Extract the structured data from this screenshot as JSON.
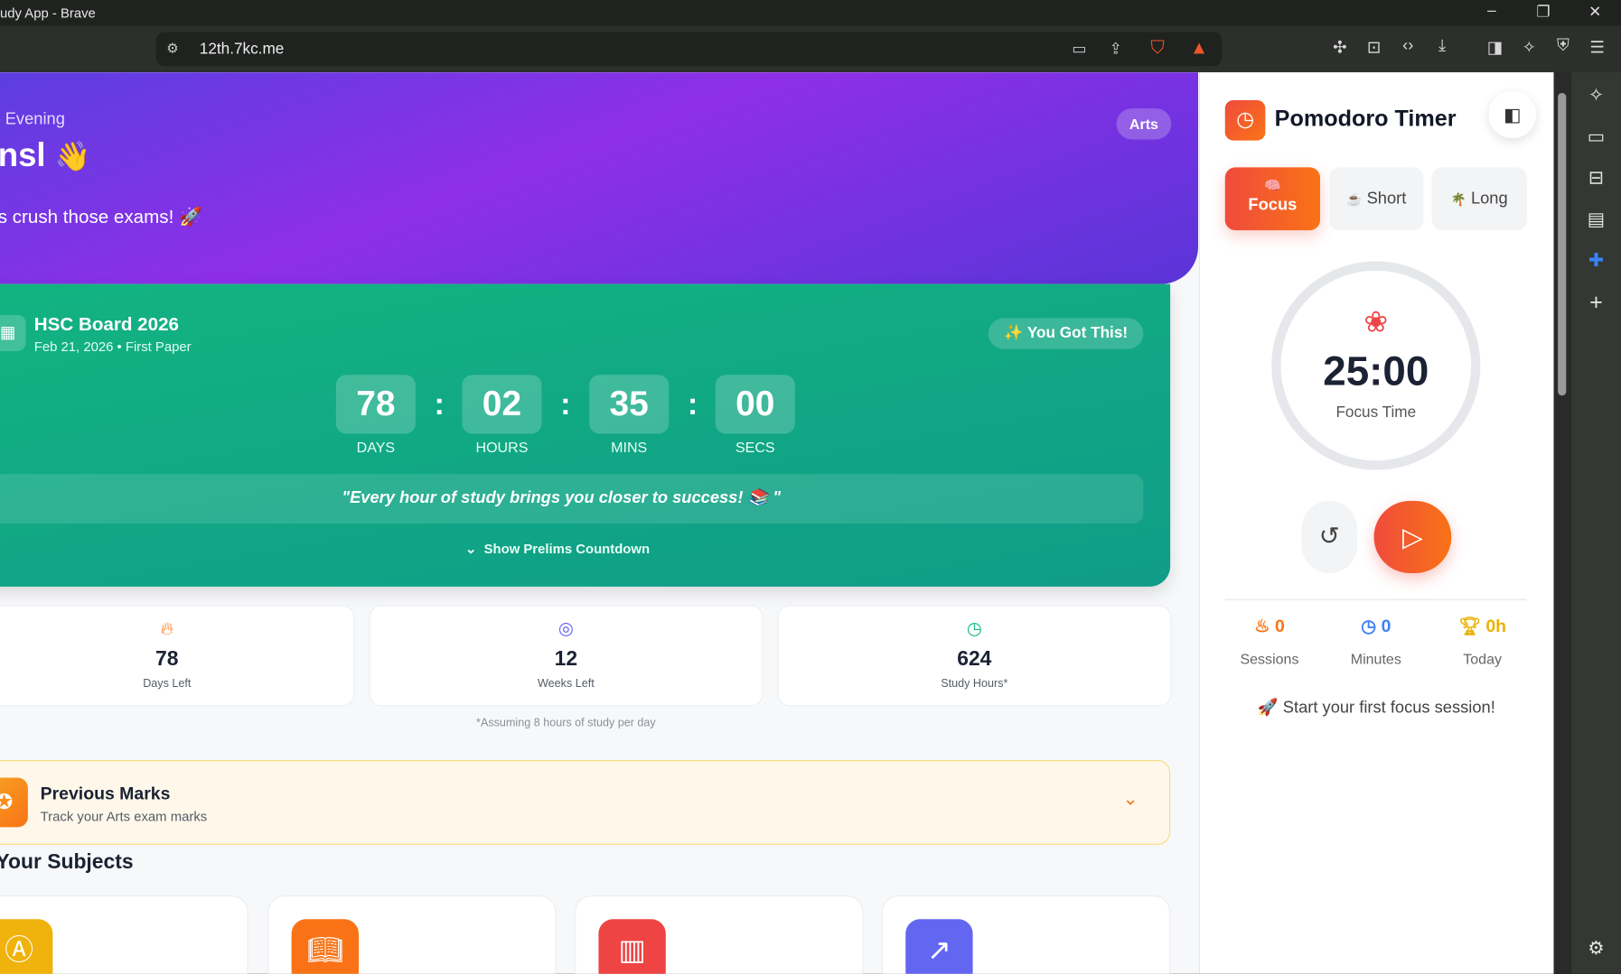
{
  "window": {
    "title": "udy App - Brave",
    "url": "12th.7kc.me"
  },
  "hero": {
    "greeting": "Evening",
    "name": "nsl",
    "wave": "👋",
    "tagline": "s crush those exams! 🚀",
    "stream_badge": "Arts"
  },
  "exam": {
    "title": "HSC Board 2026",
    "subtitle": "Feb 21, 2026 • First Paper",
    "motivation": "✨ You Got This!",
    "countdown": [
      {
        "value": "78",
        "label": "DAYS"
      },
      {
        "value": "02",
        "label": "HOURS"
      },
      {
        "value": "35",
        "label": "MINS"
      },
      {
        "value": "00",
        "label": "SECS"
      }
    ],
    "quote": "\"Every hour of study brings you closer to success! 📚 \"",
    "toggle": "Show Prelims Countdown"
  },
  "stats": [
    {
      "icon": "flame-icon",
      "value": "78",
      "label": "Days Left",
      "color": "#f97316"
    },
    {
      "icon": "target-icon",
      "value": "12",
      "label": "Weeks Left",
      "color": "#6366f1"
    },
    {
      "icon": "clock-icon",
      "value": "624",
      "label": "Study Hours*",
      "color": "#10b981"
    }
  ],
  "stats_note": "*Assuming 8 hours of study per day",
  "marks": {
    "title": "Previous Marks",
    "subtitle": "Track your Arts exam marks"
  },
  "subjects": {
    "title": "Your Subjects",
    "cards": [
      {
        "icon": "language-icon",
        "color": "#f0b20c"
      },
      {
        "icon": "book-icon",
        "color": "#f97316"
      },
      {
        "icon": "building-icon",
        "color": "#ef4444"
      },
      {
        "icon": "trend-icon",
        "color": "#6366f1"
      }
    ]
  },
  "pomodoro": {
    "title": "Pomodoro Timer",
    "modes": [
      {
        "emoji": "🧠",
        "label": "Focus"
      },
      {
        "emoji": "☕",
        "label": "Short"
      },
      {
        "emoji": "🌴",
        "label": "Long"
      }
    ],
    "time": "25:00",
    "time_label": "Focus Time",
    "stats": [
      {
        "icon": "flame-icon",
        "value": "0",
        "label": "Sessions",
        "color": "#f97316"
      },
      {
        "icon": "clock-icon",
        "value": "0",
        "label": "Minutes",
        "color": "#3b82f6"
      },
      {
        "icon": "trophy-icon",
        "value": "0h",
        "label": "Today",
        "color": "#eab308"
      }
    ],
    "hint": "🚀 Start your first focus session!"
  },
  "colors": {
    "accent": "#f04b3c",
    "hero": "#8e2fe8",
    "exam": "#13b381"
  }
}
